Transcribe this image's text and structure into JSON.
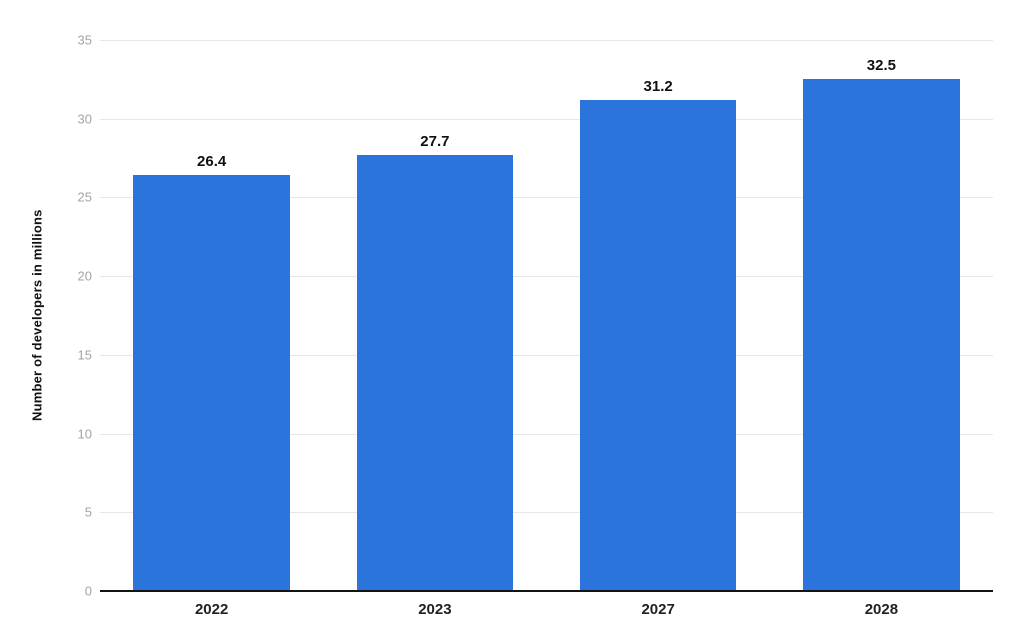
{
  "chart_data": {
    "type": "bar",
    "title": "",
    "xlabel": "",
    "ylabel": "Number of developers in millions",
    "categories": [
      "2022",
      "2023",
      "2027",
      "2028"
    ],
    "values": [
      26.4,
      27.7,
      31.2,
      32.5
    ],
    "value_labels": [
      "26.4",
      "27.7",
      "31.2",
      "32.5"
    ],
    "ylim": [
      0,
      35
    ],
    "yticks": [
      0,
      5,
      10,
      15,
      20,
      25,
      30,
      35
    ],
    "ytick_labels": [
      "0",
      "5",
      "10",
      "15",
      "20",
      "25",
      "30",
      "35"
    ],
    "grid": true,
    "legend_position": "none",
    "bar_width_fraction": 0.7
  },
  "colors": {
    "bar": "#2B74DC",
    "gridline": "#e7e7e7",
    "tick_label": "#a4a4a4",
    "value_label": "#111111",
    "axis_label": "#222222",
    "axis_line": "#131313",
    "background": "#ffffff"
  }
}
